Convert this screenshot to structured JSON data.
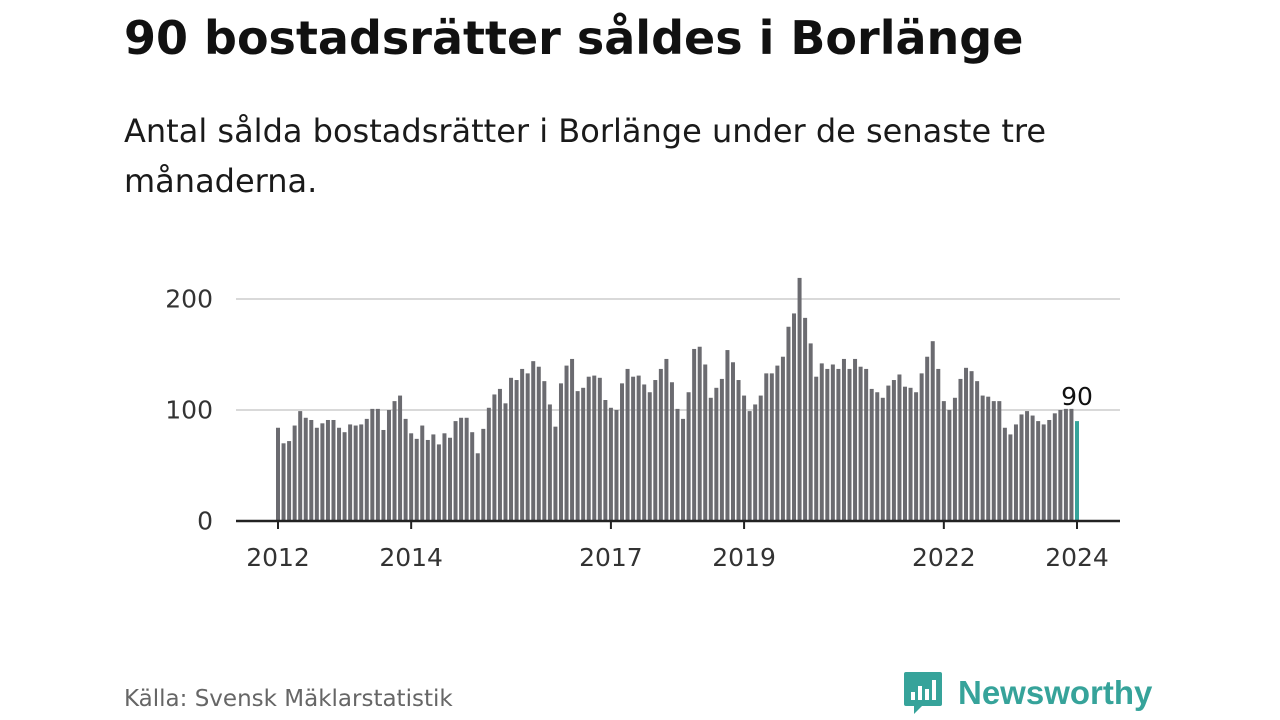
{
  "title": "90 bostadsrätter såldes i Borlänge",
  "subtitle": "Antal sålda bostadsrätter i Borlänge under de senaste tre månaderna.",
  "source": "Källa: Svensk Mäklarstatistik",
  "brand": "Newsworthy",
  "colors": {
    "bar": "#6b6b70",
    "highlight": "#36a39a",
    "grid": "#d9d9d9",
    "axis": "#222222",
    "brand": "#36a39a"
  },
  "chart_data": {
    "type": "bar",
    "title": "Antal sålda bostadsrätter i Borlänge",
    "xlabel": "",
    "ylabel": "",
    "ylim": [
      0,
      220
    ],
    "yticks": [
      0,
      100,
      200
    ],
    "grid": true,
    "x_start": "2012-01",
    "x_end": "2024-01",
    "xtick_labels": [
      {
        "label": "2012",
        "date": "2012-01"
      },
      {
        "label": "2014",
        "date": "2014-01"
      },
      {
        "label": "2017",
        "date": "2017-01"
      },
      {
        "label": "2019",
        "date": "2019-01"
      },
      {
        "label": "2022",
        "date": "2022-01"
      },
      {
        "label": "2024",
        "date": "2024-01"
      }
    ],
    "highlight_last": true,
    "last_value_label": "90",
    "values": [
      84,
      70,
      72,
      86,
      99,
      93,
      91,
      84,
      88,
      91,
      91,
      84,
      80,
      87,
      86,
      87,
      92,
      101,
      101,
      82,
      100,
      108,
      113,
      92,
      79,
      74,
      86,
      73,
      78,
      69,
      79,
      75,
      90,
      93,
      93,
      80,
      61,
      83,
      102,
      114,
      119,
      106,
      129,
      127,
      137,
      133,
      144,
      139,
      126,
      105,
      85,
      124,
      140,
      146,
      117,
      120,
      130,
      131,
      129,
      109,
      102,
      100,
      124,
      137,
      130,
      131,
      123,
      116,
      127,
      137,
      146,
      125,
      101,
      92,
      116,
      155,
      157,
      141,
      111,
      120,
      128,
      154,
      143,
      127,
      113,
      99,
      105,
      113,
      133,
      133,
      140,
      148,
      175,
      187,
      219,
      183,
      160,
      130,
      142,
      137,
      141,
      137,
      146,
      137,
      146,
      139,
      137,
      119,
      116,
      111,
      122,
      127,
      132,
      121,
      120,
      116,
      133,
      148,
      162,
      137,
      108,
      100,
      111,
      128,
      138,
      135,
      126,
      113,
      112,
      108,
      108,
      84,
      78,
      87,
      96,
      99,
      95,
      90,
      87,
      91,
      97,
      100,
      101,
      101,
      90
    ]
  }
}
